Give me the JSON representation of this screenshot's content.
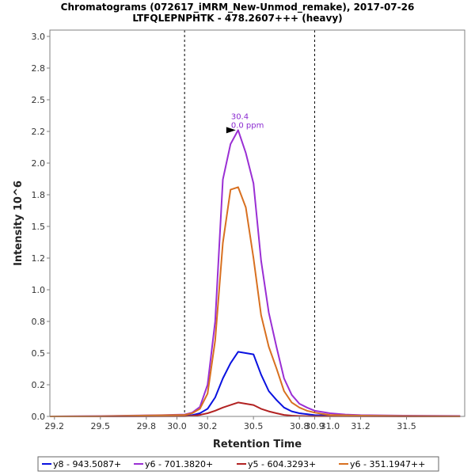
{
  "chart_data": {
    "type": "line",
    "title": "Chromatograms (072617_iMRM_New-Unmod_remake), 2017-07-26",
    "subtitle": "LTFQLEPNPHTK - 478.2607+++ (heavy)",
    "xlabel": "Retention Time",
    "ylabel": "Intensity 10^6",
    "xlim": [
      29.17,
      31.88
    ],
    "ylim": [
      0.0,
      3.05
    ],
    "x_ticks": [
      "29.2",
      "29.5",
      "29.8",
      "30.0",
      "30.2",
      "30.5",
      "30.8",
      "30.9",
      "31.0",
      "31.2",
      "31.5"
    ],
    "x_tick_values": [
      29.2,
      29.5,
      29.8,
      30.0,
      30.2,
      30.5,
      30.8,
      30.9,
      31.0,
      31.2,
      31.5
    ],
    "y_ticks": [
      "0.0",
      "0.2",
      "0.5",
      "0.8",
      "1.0",
      "1.2",
      "1.5",
      "1.8",
      "2.0",
      "2.2",
      "2.5",
      "2.8",
      "3.0"
    ],
    "y_tick_values": [
      0.0,
      0.25,
      0.5,
      0.75,
      1.0,
      1.25,
      1.5,
      1.75,
      2.0,
      2.25,
      2.5,
      2.75,
      3.0
    ],
    "boundaries": [
      30.05,
      30.9
    ],
    "annotation": {
      "x": 30.4,
      "y": 2.26,
      "label_rt": "30.4",
      "label_ppm": "0.0 ppm"
    },
    "legend_position": "bottom",
    "series": [
      {
        "name": "y8 - 943.5087+",
        "color": "#0a12e0",
        "x": [
          29.17,
          29.5,
          30.05,
          30.1,
          30.15,
          30.2,
          30.25,
          30.3,
          30.35,
          30.4,
          30.45,
          30.5,
          30.55,
          30.6,
          30.65,
          30.7,
          30.75,
          30.8,
          30.85,
          30.9,
          31.0,
          31.2,
          31.5,
          31.85
        ],
        "y": [
          0.0,
          0.0,
          0.005,
          0.01,
          0.025,
          0.06,
          0.15,
          0.3,
          0.42,
          0.51,
          0.5,
          0.49,
          0.33,
          0.2,
          0.13,
          0.07,
          0.04,
          0.025,
          0.018,
          0.01,
          0.008,
          0.005,
          0.003,
          0.002
        ]
      },
      {
        "name": "y6 - 701.3820+",
        "color": "#9a2fd4",
        "x": [
          29.17,
          29.5,
          29.9,
          30.05,
          30.1,
          30.15,
          30.2,
          30.25,
          30.3,
          30.35,
          30.4,
          30.45,
          30.5,
          30.55,
          30.6,
          30.65,
          30.7,
          30.75,
          30.8,
          30.85,
          30.9,
          30.95,
          31.0,
          31.1,
          31.2,
          31.5,
          31.85
        ],
        "y": [
          0.0,
          0.003,
          0.01,
          0.015,
          0.03,
          0.075,
          0.25,
          0.75,
          1.87,
          2.15,
          2.26,
          2.08,
          1.84,
          1.23,
          0.82,
          0.55,
          0.3,
          0.17,
          0.1,
          0.07,
          0.045,
          0.035,
          0.025,
          0.015,
          0.01,
          0.006,
          0.004
        ]
      },
      {
        "name": "y5 - 604.3293+",
        "color": "#b22222",
        "x": [
          29.17,
          29.5,
          30.05,
          30.1,
          30.15,
          30.2,
          30.25,
          30.3,
          30.35,
          30.4,
          30.45,
          30.5,
          30.55,
          30.6,
          30.65,
          30.7,
          30.75,
          30.8,
          30.9,
          31.0,
          31.5,
          31.85
        ],
        "y": [
          0.0,
          0.0,
          0.002,
          0.005,
          0.012,
          0.025,
          0.045,
          0.07,
          0.09,
          0.11,
          0.1,
          0.09,
          0.06,
          0.04,
          0.025,
          0.012,
          0.006,
          0.003,
          0.001,
          0.001,
          0.0,
          0.0
        ]
      },
      {
        "name": "y6 - 351.1947++",
        "color": "#d87020",
        "x": [
          29.17,
          29.5,
          30.05,
          30.1,
          30.15,
          30.2,
          30.25,
          30.3,
          30.35,
          30.4,
          30.45,
          30.5,
          30.55,
          30.6,
          30.65,
          30.7,
          30.75,
          30.8,
          30.85,
          30.9,
          30.95,
          31.0,
          31.2,
          31.5,
          31.85
        ],
        "y": [
          0.0,
          0.002,
          0.012,
          0.025,
          0.06,
          0.18,
          0.6,
          1.37,
          1.79,
          1.81,
          1.65,
          1.25,
          0.8,
          0.55,
          0.38,
          0.2,
          0.11,
          0.07,
          0.045,
          0.03,
          0.02,
          0.012,
          0.006,
          0.003,
          0.002
        ]
      }
    ]
  }
}
